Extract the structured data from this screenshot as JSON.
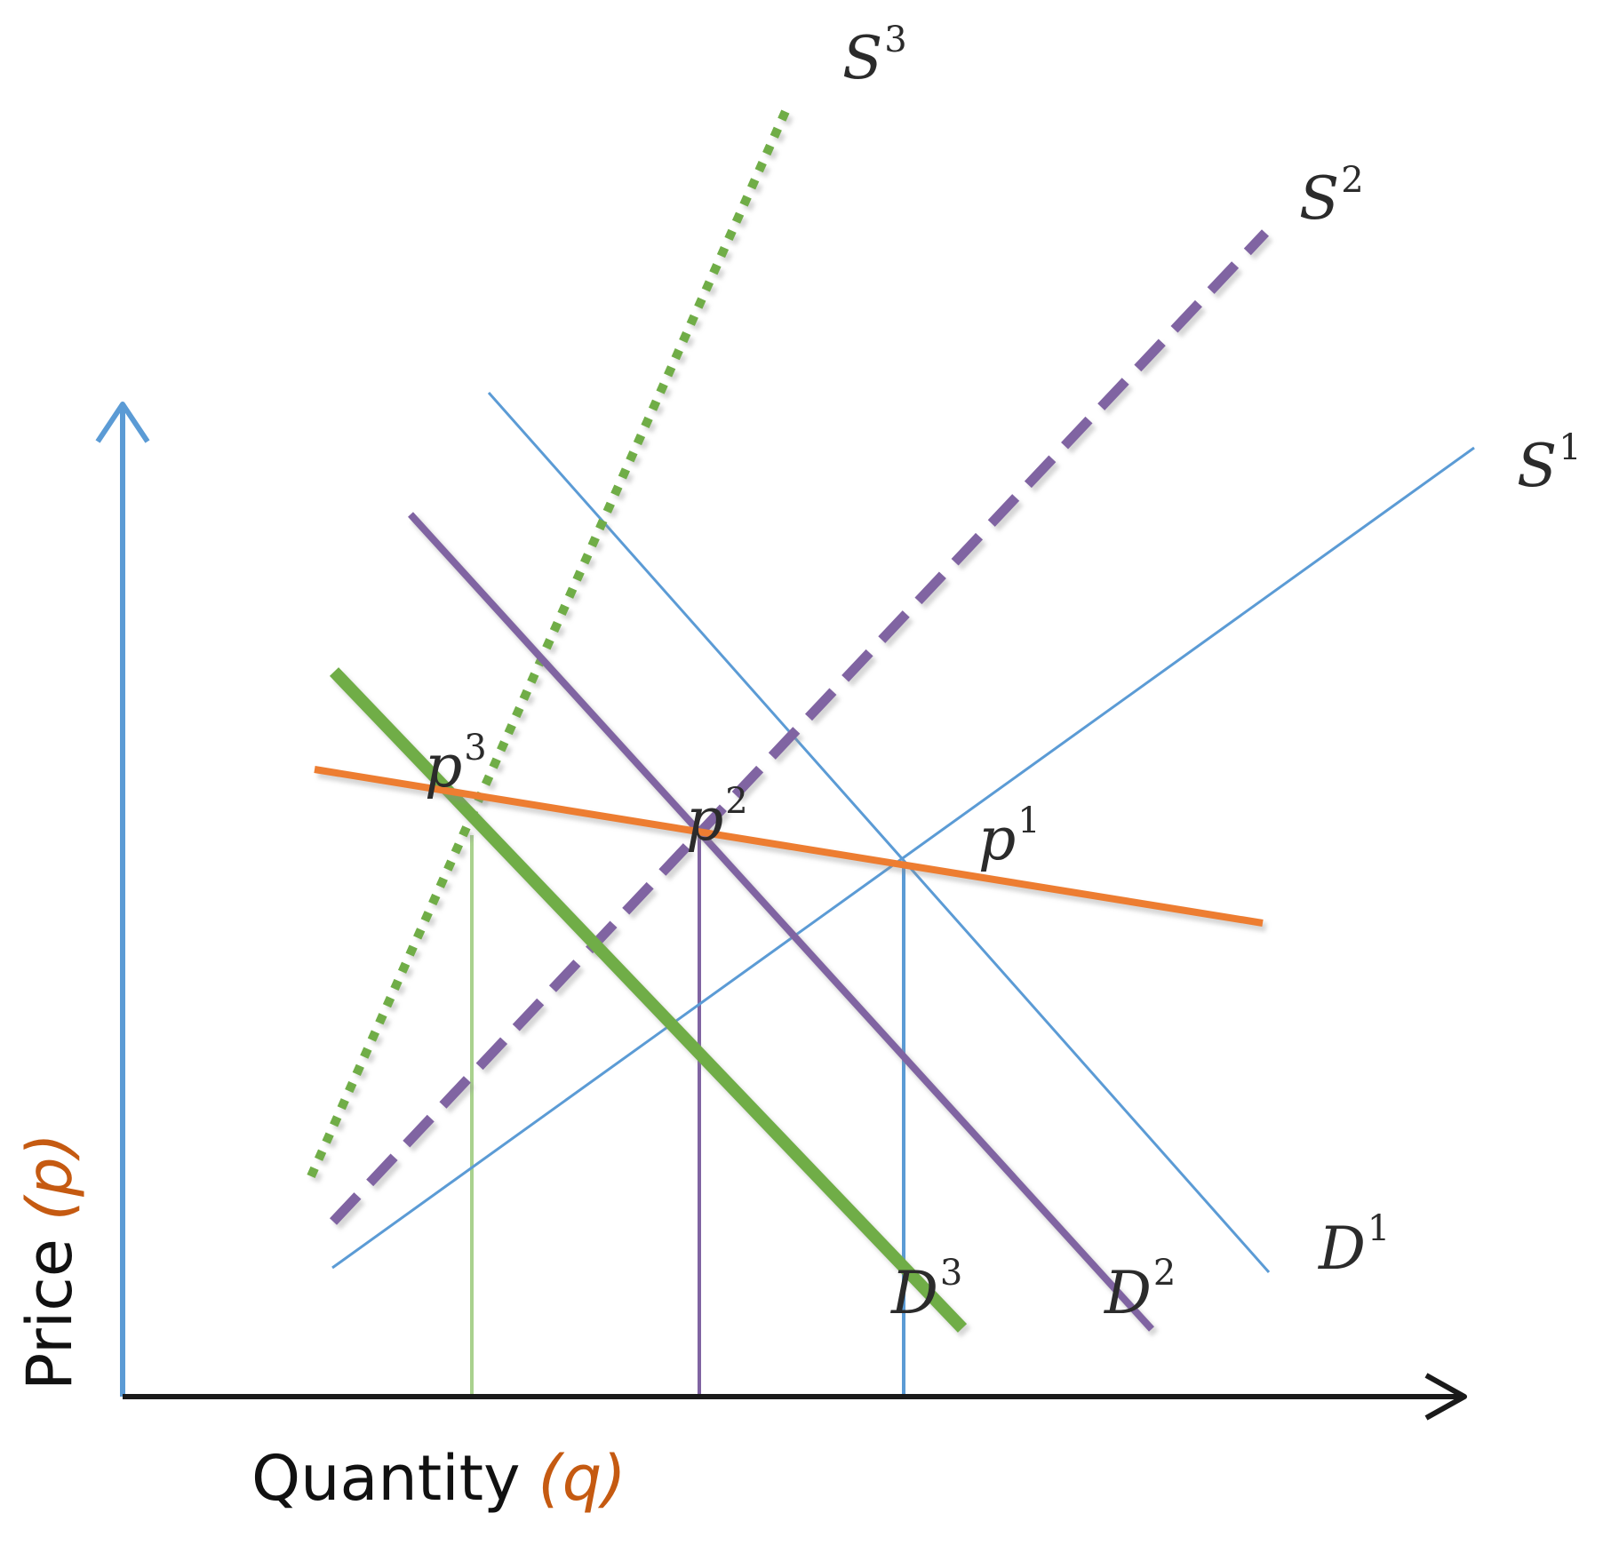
{
  "axes": {
    "x_label": "Quantity",
    "x_var": "(q)",
    "y_label": "Price",
    "y_var": "(p)",
    "x_axis_color": "#1a1a1a",
    "y_axis_color": "#5b9bd5",
    "var_color": "#c55a11"
  },
  "curves": [
    {
      "id": "S1",
      "label": "S",
      "sup": "1",
      "kind": "supply",
      "color": "#5b9bd5",
      "style": "thin-solid"
    },
    {
      "id": "S2",
      "label": "S",
      "sup": "2",
      "kind": "supply",
      "color": "#8064a2",
      "style": "dashed"
    },
    {
      "id": "S3",
      "label": "S",
      "sup": "3",
      "kind": "supply",
      "color": "#70ad47",
      "style": "dotted"
    },
    {
      "id": "D1",
      "label": "D",
      "sup": "1",
      "kind": "demand",
      "color": "#5b9bd5",
      "style": "thin-solid"
    },
    {
      "id": "D2",
      "label": "D",
      "sup": "2",
      "kind": "demand",
      "color": "#8064a2",
      "style": "solid"
    },
    {
      "id": "D3",
      "label": "D",
      "sup": "3",
      "kind": "demand",
      "color": "#70ad47",
      "style": "thick-solid"
    },
    {
      "id": "price-line",
      "label": "",
      "sup": "",
      "kind": "price",
      "color": "#ed7d31",
      "style": "solid"
    }
  ],
  "equilibria": [
    {
      "id": "p1",
      "label": "p",
      "sup": "1",
      "color": "#5b9bd5"
    },
    {
      "id": "p2",
      "label": "p",
      "sup": "2",
      "color": "#8064a2"
    },
    {
      "id": "p3",
      "label": "p",
      "sup": "3",
      "color": "#70ad47"
    }
  ]
}
